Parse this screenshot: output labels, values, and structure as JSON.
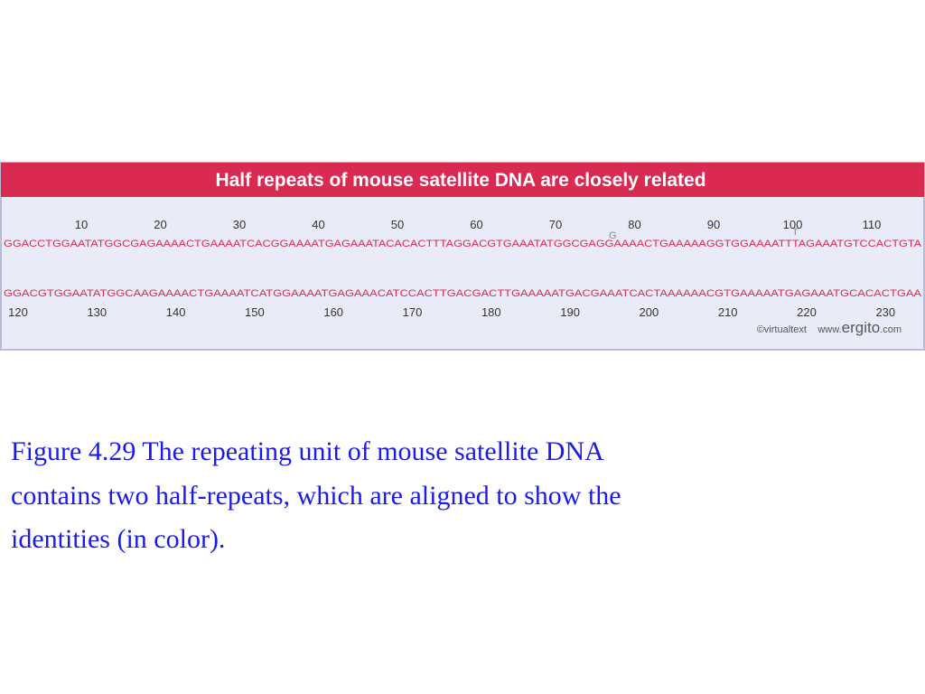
{
  "figure": {
    "title": "Half repeats of mouse satellite DNA are closely related",
    "top_ruler": [
      10,
      20,
      30,
      40,
      50,
      60,
      70,
      80,
      90,
      100,
      110
    ],
    "sequence_1": "GGACCTGGAATATGGCGAGAAAACTGAAAATCACGGAAAATGAGAAATACACACTTTAGGACGTGAAATATGGCGAGGAAAACTGAAAAAGGTGGAAAATTTAGAAATGTCCACTGTA",
    "annotations": [
      "G",
      "T"
    ],
    "sequence_2": "GGACGTGGAATATGGCAAGAAAACTGAAAATCATGGAAAATGAGAAACATCCACTTGACGACTTGAAAAATGACGAAATCACTAAAAAACGTGAAAAATGAGAAATGCACACTGAA",
    "bottom_ruler": [
      120,
      130,
      140,
      150,
      160,
      170,
      180,
      190,
      200,
      210,
      220,
      230
    ],
    "credit": "©virtualtext",
    "site_prefix": "www.",
    "site_name": "ergito",
    "site_suffix": ".com"
  },
  "caption": {
    "lines": [
      "Figure 4.29 The repeating unit of mouse satellite DNA",
      "contains two half-repeats, which are aligned to show the",
      "identities (in color)."
    ]
  }
}
